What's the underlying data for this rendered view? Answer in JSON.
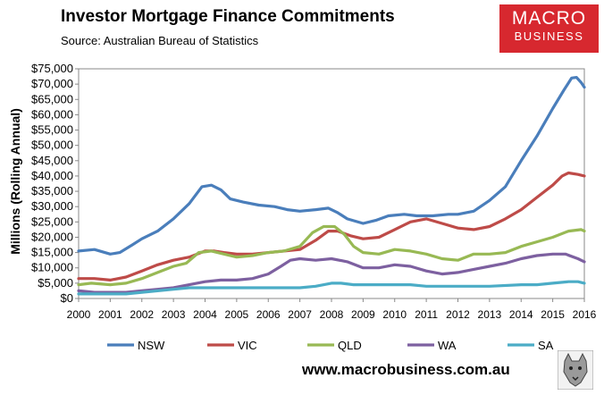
{
  "header": {
    "title": "Investor Mortgage Finance Commitments",
    "subtitle": "Source: Australian Bureau of Statistics"
  },
  "logo": {
    "line1": "MACRO",
    "line2": "BUSINESS"
  },
  "footer": {
    "website": "www.macrobusiness.com.au"
  },
  "chart_data": {
    "type": "line",
    "title": "Investor Mortgage Finance Commitments",
    "subtitle": "Source: Australian Bureau of Statistics",
    "xlabel": "",
    "ylabel": "Millions (Rolling Annual)",
    "xlim": [
      2000,
      2016
    ],
    "ylim": [
      0,
      75000
    ],
    "x_ticks": [
      2000,
      2001,
      2002,
      2003,
      2004,
      2005,
      2006,
      2007,
      2008,
      2009,
      2010,
      2011,
      2012,
      2013,
      2014,
      2015,
      2016
    ],
    "x_tick_labels": [
      "2000",
      "2001",
      "2002",
      "2003",
      "2004",
      "2005",
      "2006",
      "2007",
      "2008",
      "2009",
      "2010",
      "2011",
      "2012",
      "2013",
      "2014",
      "2015",
      "2016"
    ],
    "y_ticks": [
      0,
      5000,
      10000,
      15000,
      20000,
      25000,
      30000,
      35000,
      40000,
      45000,
      50000,
      55000,
      60000,
      65000,
      70000,
      75000
    ],
    "y_tick_labels": [
      "$0",
      "$5,000",
      "$10,000",
      "$15,000",
      "$20,000",
      "$25,000",
      "$30,000",
      "$35,000",
      "$40,000",
      "$45,000",
      "$50,000",
      "$55,000",
      "$60,000",
      "$65,000",
      "$70,000",
      "$75,000"
    ],
    "grid": false,
    "legend": "bottom",
    "series": [
      {
        "name": "NSW",
        "color": "#4a7ebb",
        "points": [
          [
            2000,
            15500
          ],
          [
            2000.5,
            16000
          ],
          [
            2001,
            14500
          ],
          [
            2001.3,
            15000
          ],
          [
            2001.7,
            17500
          ],
          [
            2002,
            19500
          ],
          [
            2002.5,
            22000
          ],
          [
            2003,
            26000
          ],
          [
            2003.5,
            31000
          ],
          [
            2003.9,
            36500
          ],
          [
            2004.2,
            37000
          ],
          [
            2004.5,
            35500
          ],
          [
            2004.8,
            32500
          ],
          [
            2005.2,
            31500
          ],
          [
            2005.7,
            30500
          ],
          [
            2006.2,
            30000
          ],
          [
            2006.6,
            29000
          ],
          [
            2007,
            28500
          ],
          [
            2007.5,
            29000
          ],
          [
            2007.9,
            29500
          ],
          [
            2008.2,
            28000
          ],
          [
            2008.5,
            26000
          ],
          [
            2009,
            24500
          ],
          [
            2009.4,
            25500
          ],
          [
            2009.8,
            27000
          ],
          [
            2010.3,
            27500
          ],
          [
            2010.7,
            27000
          ],
          [
            2011.2,
            27000
          ],
          [
            2011.7,
            27500
          ],
          [
            2012,
            27500
          ],
          [
            2012.5,
            28500
          ],
          [
            2013,
            32000
          ],
          [
            2013.5,
            36500
          ],
          [
            2014,
            45000
          ],
          [
            2014.5,
            53000
          ],
          [
            2015,
            62000
          ],
          [
            2015.35,
            68000
          ],
          [
            2015.6,
            72000
          ],
          [
            2015.75,
            72200
          ],
          [
            2015.9,
            70500
          ],
          [
            2016,
            69000
          ]
        ]
      },
      {
        "name": "VIC",
        "color": "#be4b48",
        "points": [
          [
            2000,
            6500
          ],
          [
            2000.5,
            6500
          ],
          [
            2001,
            6000
          ],
          [
            2001.5,
            7000
          ],
          [
            2002,
            9000
          ],
          [
            2002.5,
            11000
          ],
          [
            2003,
            12500
          ],
          [
            2003.5,
            13500
          ],
          [
            2004,
            15500
          ],
          [
            2004.3,
            15500
          ],
          [
            2004.6,
            15000
          ],
          [
            2005,
            14500
          ],
          [
            2005.5,
            14500
          ],
          [
            2006,
            15000
          ],
          [
            2006.5,
            15500
          ],
          [
            2007,
            16000
          ],
          [
            2007.5,
            19000
          ],
          [
            2007.9,
            22000
          ],
          [
            2008.2,
            22000
          ],
          [
            2008.6,
            20500
          ],
          [
            2009,
            19500
          ],
          [
            2009.5,
            20000
          ],
          [
            2010,
            22500
          ],
          [
            2010.5,
            25000
          ],
          [
            2011,
            26000
          ],
          [
            2011.5,
            24500
          ],
          [
            2012,
            23000
          ],
          [
            2012.5,
            22500
          ],
          [
            2013,
            23500
          ],
          [
            2013.5,
            26000
          ],
          [
            2014,
            29000
          ],
          [
            2014.5,
            33000
          ],
          [
            2015,
            37000
          ],
          [
            2015.3,
            40000
          ],
          [
            2015.5,
            41000
          ],
          [
            2015.8,
            40500
          ],
          [
            2016,
            40000
          ]
        ]
      },
      {
        "name": "QLD",
        "color": "#98b954",
        "points": [
          [
            2000,
            4500
          ],
          [
            2000.4,
            5000
          ],
          [
            2001,
            4500
          ],
          [
            2001.5,
            5000
          ],
          [
            2002,
            6500
          ],
          [
            2002.5,
            8500
          ],
          [
            2003,
            10500
          ],
          [
            2003.4,
            11500
          ],
          [
            2003.8,
            15000
          ],
          [
            2004.2,
            15500
          ],
          [
            2004.6,
            14500
          ],
          [
            2005,
            13500
          ],
          [
            2005.5,
            14000
          ],
          [
            2006,
            15000
          ],
          [
            2006.5,
            15500
          ],
          [
            2007,
            17000
          ],
          [
            2007.4,
            21500
          ],
          [
            2007.75,
            23500
          ],
          [
            2008.1,
            23500
          ],
          [
            2008.4,
            21000
          ],
          [
            2008.7,
            17000
          ],
          [
            2009,
            15000
          ],
          [
            2009.5,
            14500
          ],
          [
            2010,
            16000
          ],
          [
            2010.5,
            15500
          ],
          [
            2011,
            14500
          ],
          [
            2011.5,
            13000
          ],
          [
            2012,
            12500
          ],
          [
            2012.5,
            14500
          ],
          [
            2013,
            14500
          ],
          [
            2013.5,
            15000
          ],
          [
            2014,
            17000
          ],
          [
            2014.5,
            18500
          ],
          [
            2015,
            20000
          ],
          [
            2015.5,
            22000
          ],
          [
            2015.9,
            22500
          ],
          [
            2016,
            22000
          ]
        ]
      },
      {
        "name": "WA",
        "color": "#7d60a0",
        "points": [
          [
            2000,
            2500
          ],
          [
            2000.5,
            2000
          ],
          [
            2001,
            2000
          ],
          [
            2001.5,
            2000
          ],
          [
            2002,
            2500
          ],
          [
            2002.5,
            3000
          ],
          [
            2003,
            3500
          ],
          [
            2003.5,
            4500
          ],
          [
            2004,
            5500
          ],
          [
            2004.5,
            6000
          ],
          [
            2005,
            6000
          ],
          [
            2005.5,
            6500
          ],
          [
            2006,
            8000
          ],
          [
            2006.4,
            10500
          ],
          [
            2006.7,
            12500
          ],
          [
            2007,
            13000
          ],
          [
            2007.5,
            12500
          ],
          [
            2008,
            13000
          ],
          [
            2008.5,
            12000
          ],
          [
            2009,
            10000
          ],
          [
            2009.5,
            10000
          ],
          [
            2010,
            11000
          ],
          [
            2010.5,
            10500
          ],
          [
            2011,
            9000
          ],
          [
            2011.5,
            8000
          ],
          [
            2012,
            8500
          ],
          [
            2012.5,
            9500
          ],
          [
            2013,
            10500
          ],
          [
            2013.5,
            11500
          ],
          [
            2014,
            13000
          ],
          [
            2014.5,
            14000
          ],
          [
            2015,
            14500
          ],
          [
            2015.4,
            14500
          ],
          [
            2015.8,
            13000
          ],
          [
            2016,
            12000
          ]
        ]
      },
      {
        "name": "SA",
        "color": "#4bacc6",
        "points": [
          [
            2000,
            1500
          ],
          [
            2000.5,
            1500
          ],
          [
            2001,
            1500
          ],
          [
            2001.5,
            1500
          ],
          [
            2002,
            2000
          ],
          [
            2002.5,
            2500
          ],
          [
            2003,
            3000
          ],
          [
            2003.5,
            3500
          ],
          [
            2004,
            3500
          ],
          [
            2005,
            3500
          ],
          [
            2006,
            3500
          ],
          [
            2007,
            3500
          ],
          [
            2007.5,
            4000
          ],
          [
            2008,
            5000
          ],
          [
            2008.3,
            5000
          ],
          [
            2008.7,
            4500
          ],
          [
            2009,
            4500
          ],
          [
            2010,
            4500
          ],
          [
            2010.5,
            4500
          ],
          [
            2011,
            4000
          ],
          [
            2012,
            4000
          ],
          [
            2012.5,
            4000
          ],
          [
            2013,
            4000
          ],
          [
            2014,
            4500
          ],
          [
            2014.5,
            4500
          ],
          [
            2015,
            5000
          ],
          [
            2015.5,
            5500
          ],
          [
            2015.8,
            5500
          ],
          [
            2016,
            5000
          ]
        ]
      }
    ]
  }
}
